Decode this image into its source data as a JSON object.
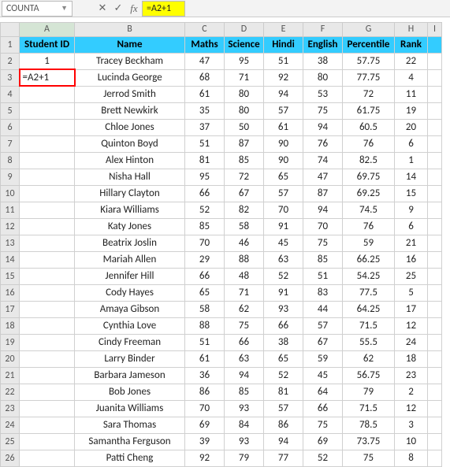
{
  "formulaBar": {
    "nameBox": "COUNTA",
    "cancel": "✕",
    "accept": "✓",
    "fx": "fx",
    "formula": "=A2+1"
  },
  "columns": [
    "A",
    "B",
    "C",
    "D",
    "E",
    "F",
    "G",
    "H",
    "I"
  ],
  "headers": {
    "A": "Student ID",
    "B": "Name",
    "C": "Maths",
    "D": "Science",
    "E": "Hindi",
    "F": "English",
    "G": "Percentile",
    "H": "Rank"
  },
  "editCell": {
    "row": 3,
    "value": "=A2+1"
  },
  "rows": [
    {
      "n": 2,
      "A": "1",
      "B": "Tracey Beckham",
      "C": "47",
      "D": "95",
      "E": "51",
      "F": "38",
      "G": "57.75",
      "H": "22"
    },
    {
      "n": 3,
      "A": "",
      "B": "Lucinda George",
      "C": "68",
      "D": "71",
      "E": "92",
      "F": "80",
      "G": "77.75",
      "H": "4"
    },
    {
      "n": 4,
      "A": "",
      "B": "Jerrod Smith",
      "C": "61",
      "D": "80",
      "E": "94",
      "F": "53",
      "G": "72",
      "H": "11"
    },
    {
      "n": 5,
      "A": "",
      "B": "Brett Newkirk",
      "C": "35",
      "D": "80",
      "E": "57",
      "F": "75",
      "G": "61.75",
      "H": "19"
    },
    {
      "n": 6,
      "A": "",
      "B": "Chloe Jones",
      "C": "37",
      "D": "50",
      "E": "61",
      "F": "94",
      "G": "60.5",
      "H": "20"
    },
    {
      "n": 7,
      "A": "",
      "B": "Quinton Boyd",
      "C": "51",
      "D": "87",
      "E": "90",
      "F": "76",
      "G": "76",
      "H": "6"
    },
    {
      "n": 8,
      "A": "",
      "B": "Alex Hinton",
      "C": "81",
      "D": "85",
      "E": "90",
      "F": "74",
      "G": "82.5",
      "H": "1"
    },
    {
      "n": 9,
      "A": "",
      "B": "Nisha Hall",
      "C": "95",
      "D": "72",
      "E": "65",
      "F": "47",
      "G": "69.75",
      "H": "14"
    },
    {
      "n": 10,
      "A": "",
      "B": "Hillary Clayton",
      "C": "66",
      "D": "67",
      "E": "57",
      "F": "87",
      "G": "69.25",
      "H": "15"
    },
    {
      "n": 11,
      "A": "",
      "B": "Kiara Williams",
      "C": "52",
      "D": "82",
      "E": "70",
      "F": "94",
      "G": "74.5",
      "H": "9"
    },
    {
      "n": 12,
      "A": "",
      "B": "Katy Jones",
      "C": "85",
      "D": "58",
      "E": "91",
      "F": "70",
      "G": "76",
      "H": "6"
    },
    {
      "n": 13,
      "A": "",
      "B": "Beatrix Joslin",
      "C": "70",
      "D": "46",
      "E": "45",
      "F": "75",
      "G": "59",
      "H": "21"
    },
    {
      "n": 14,
      "A": "",
      "B": "Mariah Allen",
      "C": "29",
      "D": "88",
      "E": "63",
      "F": "85",
      "G": "66.25",
      "H": "16"
    },
    {
      "n": 15,
      "A": "",
      "B": "Jennifer Hill",
      "C": "66",
      "D": "48",
      "E": "52",
      "F": "51",
      "G": "54.25",
      "H": "25"
    },
    {
      "n": 16,
      "A": "",
      "B": "Cody Hayes",
      "C": "65",
      "D": "71",
      "E": "91",
      "F": "83",
      "G": "77.5",
      "H": "5"
    },
    {
      "n": 17,
      "A": "",
      "B": "Amaya Gibson",
      "C": "58",
      "D": "62",
      "E": "93",
      "F": "44",
      "G": "64.25",
      "H": "17"
    },
    {
      "n": 18,
      "A": "",
      "B": "Cynthia Love",
      "C": "88",
      "D": "75",
      "E": "66",
      "F": "57",
      "G": "71.5",
      "H": "12"
    },
    {
      "n": 19,
      "A": "",
      "B": "Cindy Freeman",
      "C": "51",
      "D": "66",
      "E": "38",
      "F": "67",
      "G": "55.5",
      "H": "24"
    },
    {
      "n": 20,
      "A": "",
      "B": "Larry Binder",
      "C": "61",
      "D": "63",
      "E": "65",
      "F": "59",
      "G": "62",
      "H": "18"
    },
    {
      "n": 21,
      "A": "",
      "B": "Barbara Jameson",
      "C": "36",
      "D": "94",
      "E": "52",
      "F": "45",
      "G": "56.75",
      "H": "23"
    },
    {
      "n": 22,
      "A": "",
      "B": "Bob Jones",
      "C": "86",
      "D": "85",
      "E": "81",
      "F": "64",
      "G": "79",
      "H": "2"
    },
    {
      "n": 23,
      "A": "",
      "B": "Juanita Williams",
      "C": "70",
      "D": "93",
      "E": "57",
      "F": "66",
      "G": "71.5",
      "H": "12"
    },
    {
      "n": 24,
      "A": "",
      "B": "Sara Thomas",
      "C": "69",
      "D": "84",
      "E": "86",
      "F": "75",
      "G": "78.5",
      "H": "3"
    },
    {
      "n": 25,
      "A": "",
      "B": "Samantha Ferguson",
      "C": "39",
      "D": "93",
      "E": "94",
      "F": "69",
      "G": "73.75",
      "H": "10"
    },
    {
      "n": 26,
      "A": "",
      "B": "Patti Cheng",
      "C": "92",
      "D": "79",
      "E": "77",
      "F": "52",
      "G": "75",
      "H": "8"
    }
  ]
}
